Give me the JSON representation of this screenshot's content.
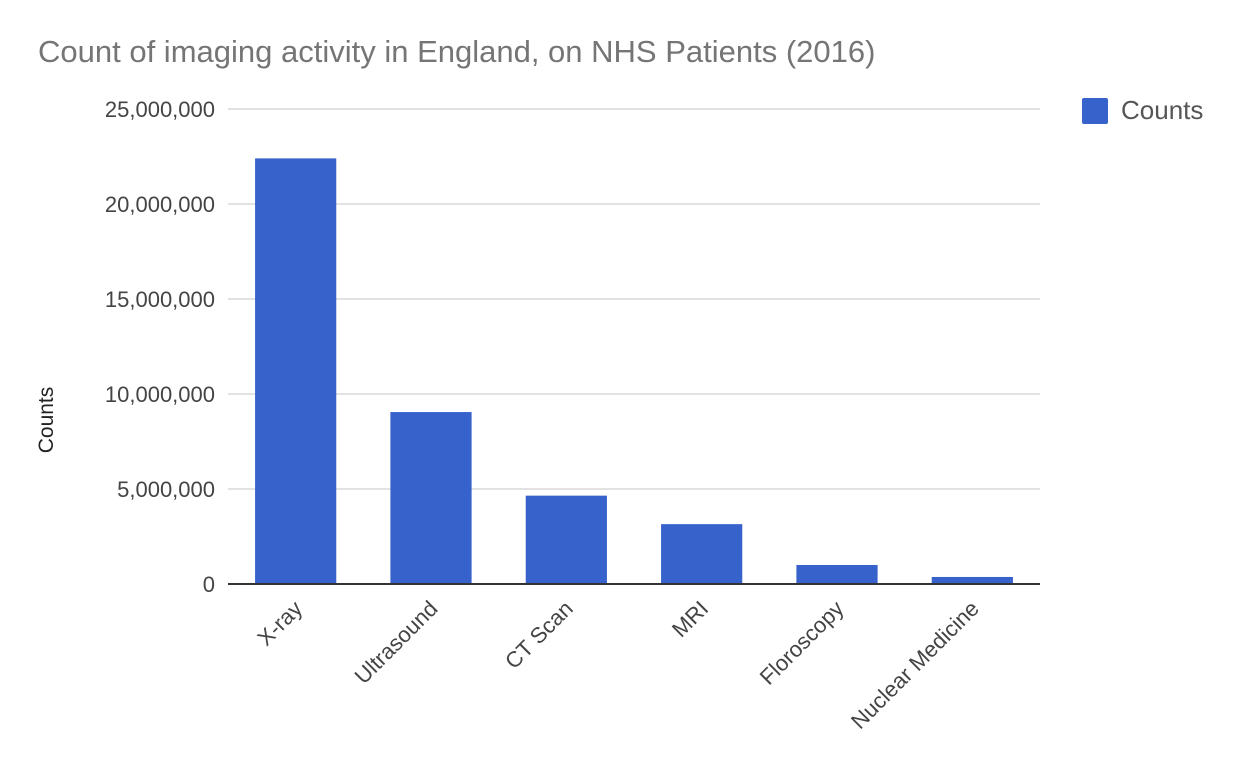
{
  "chart_data": {
    "type": "bar",
    "title": "Count of imaging activity in England, on NHS Patients (2016)",
    "xlabel": "",
    "ylabel": "Counts",
    "categories": [
      "X-ray",
      "Ultrasound",
      "CT Scan",
      "MRI",
      "Floroscopy",
      "Nuclear Medicine"
    ],
    "series": [
      {
        "name": "Counts",
        "values": [
          22400000,
          9050000,
          4650000,
          3150000,
          1000000,
          370000
        ]
      }
    ],
    "ylim": [
      0,
      25000000
    ],
    "yticks": [
      0,
      5000000,
      10000000,
      15000000,
      20000000,
      25000000
    ],
    "ytick_labels": [
      "0",
      "5,000,000",
      "10,000,000",
      "15,000,000",
      "20,000,000",
      "25,000,000"
    ],
    "grid": true,
    "legend_position": "top-right",
    "bar_color": "#3762CC",
    "gridline_color": "#D9D9D9",
    "baseline_color": "#333333",
    "tick_label_color": "#444444"
  }
}
